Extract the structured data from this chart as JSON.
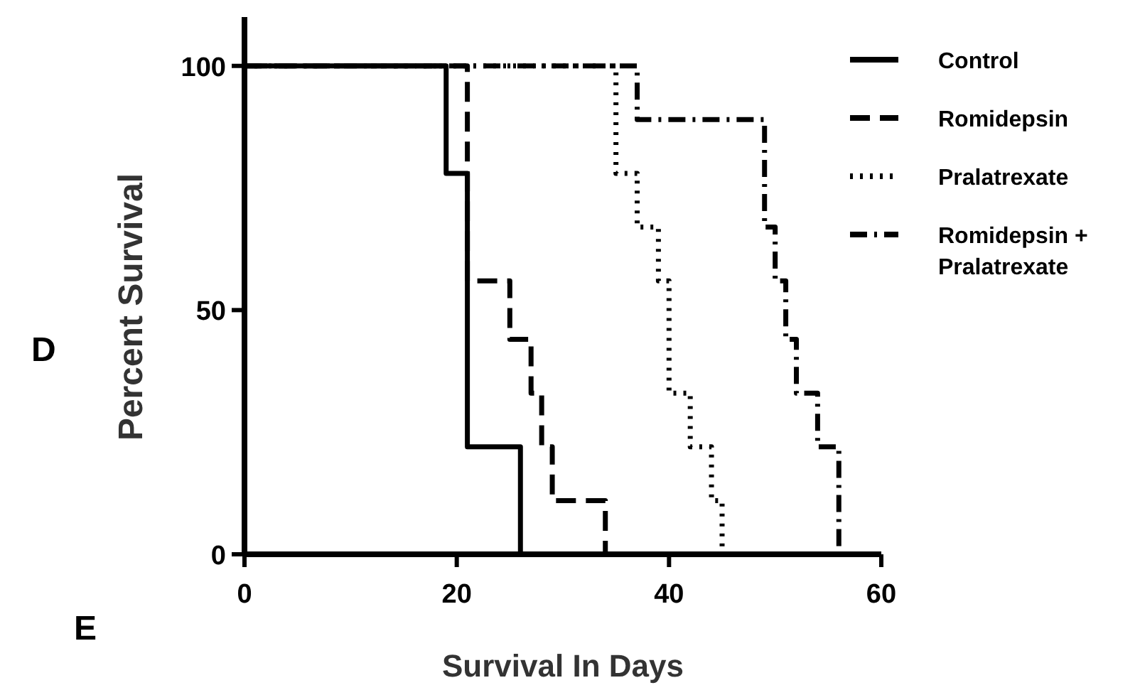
{
  "chart_data": {
    "type": "step",
    "xlabel": "Survival In Days",
    "ylabel": "Percent Survival",
    "xlim": [
      0,
      60
    ],
    "xticks": [
      0,
      20,
      40,
      60
    ],
    "ylim": [
      0,
      110
    ],
    "yticks": [
      0,
      50,
      100
    ],
    "legend": "top right",
    "grid": false,
    "annotations": [
      "D",
      "E"
    ],
    "series": [
      {
        "name": "Control",
        "color": "#000000",
        "line_style": "solid",
        "x": [
          0,
          19,
          21,
          26
        ],
        "values": [
          100,
          78,
          22,
          0
        ]
      },
      {
        "name": "Romidepsin",
        "color": "#000000",
        "line_style": "dashed",
        "x": [
          0,
          21,
          25,
          27,
          28,
          29,
          34
        ],
        "values": [
          100,
          56,
          44,
          33,
          22,
          11,
          0
        ]
      },
      {
        "name": "Pralatrexate",
        "color": "#000000",
        "line_style": "dotted",
        "x": [
          0,
          35,
          37,
          39,
          40,
          42,
          44,
          45
        ],
        "values": [
          100,
          78,
          67,
          56,
          33,
          22,
          11,
          0
        ]
      },
      {
        "name": "Romidepsin + Pralatrexate",
        "color": "#000000",
        "line_style": "dashdot",
        "x": [
          0,
          37,
          49,
          50,
          51,
          52,
          54,
          56
        ],
        "values": [
          100,
          89,
          67,
          56,
          44,
          33,
          22,
          0
        ]
      }
    ]
  }
}
